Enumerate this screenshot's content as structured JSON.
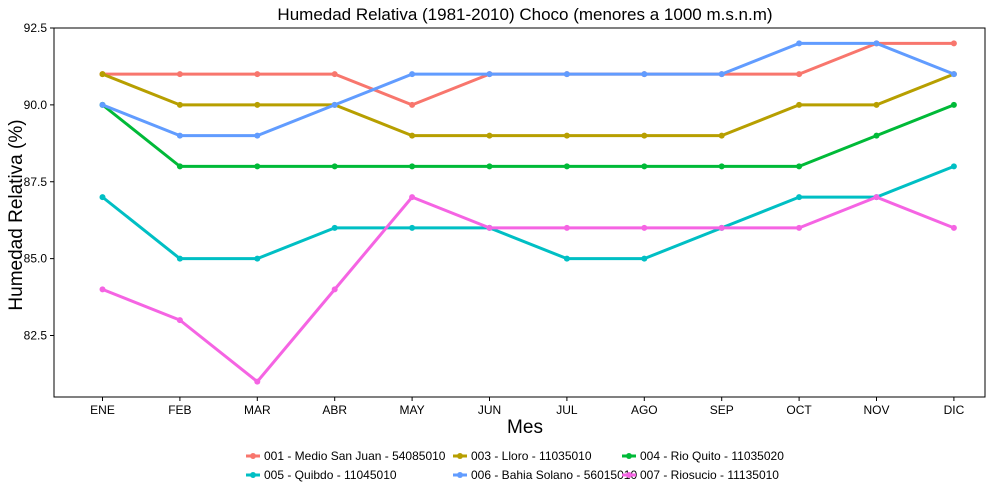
{
  "chart_data": {
    "type": "line",
    "title": "Humedad Relativa (1981-2010) Choco (menores a 1000 m.s.n.m)",
    "xlabel": "Mes",
    "ylabel": "Humedad Relativa (%)",
    "categories": [
      "ENE",
      "FEB",
      "MAR",
      "ABR",
      "MAY",
      "JUN",
      "JUL",
      "AGO",
      "SEP",
      "OCT",
      "NOV",
      "DIC"
    ],
    "ylim": [
      80.5,
      92.5
    ],
    "yticks": [
      "82.5",
      "85.0",
      "87.5",
      "90.0",
      "92.5"
    ],
    "grid": false,
    "legend_position": "bottom",
    "series": [
      {
        "name": "001 - Medio San Juan - 54085010",
        "color": "#F8766D",
        "values": [
          91,
          91,
          91,
          91,
          90,
          91,
          91,
          91,
          91,
          91,
          92,
          92
        ]
      },
      {
        "name": "003 - Lloro - 11035010",
        "color": "#B79F00",
        "values": [
          91,
          90,
          90,
          90,
          89,
          89,
          89,
          89,
          89,
          90,
          90,
          91
        ]
      },
      {
        "name": "004 - Rio Quito - 11035020",
        "color": "#00BA38",
        "values": [
          90,
          88,
          88,
          88,
          88,
          88,
          88,
          88,
          88,
          88,
          89,
          90
        ]
      },
      {
        "name": "005 - Quibdo - 11045010",
        "color": "#00BFC4",
        "values": [
          87,
          85,
          85,
          86,
          86,
          86,
          85,
          85,
          86,
          87,
          87,
          88
        ]
      },
      {
        "name": "006 - Bahia Solano - 56015010",
        "color": "#619CFF",
        "values": [
          90,
          89,
          89,
          90,
          91,
          91,
          91,
          91,
          91,
          92,
          92,
          91
        ]
      },
      {
        "name": "007 - Riosucio - 11135010",
        "color": "#F564E3",
        "values": [
          84,
          83,
          81,
          84,
          87,
          86,
          86,
          86,
          86,
          86,
          87,
          86
        ]
      }
    ]
  }
}
